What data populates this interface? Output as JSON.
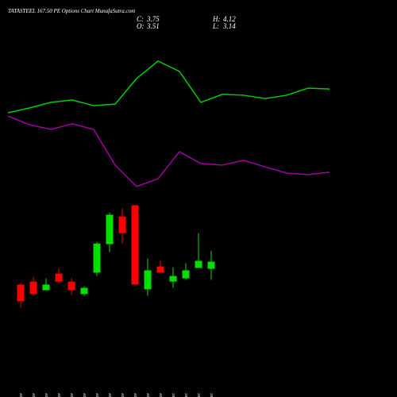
{
  "chart_data": {
    "type": "candlestick",
    "title": "TATASTEEL 167.50 PE Options Chart MunafaSutra.com",
    "info": [
      {
        "label": "C:",
        "value": 3.75
      },
      {
        "label": "O:",
        "value": 3.51
      },
      {
        "label": "H:",
        "value": 4.12
      },
      {
        "label": "L:",
        "value": 3.14
      }
    ],
    "categories": [
      "12 Nov",
      "14 Nov",
      "17 Nov",
      "18 Nov",
      "19 Nov",
      "20 Nov",
      "21 Nov",
      "24 Nov",
      "25 Nov",
      "26 Nov",
      "27 Nov",
      "28 Nov",
      "01 Dec",
      "02 Dec",
      "03 Dec",
      "04 Dec"
    ],
    "open": [
      2.98,
      3.08,
      2.79,
      3.35,
      3.08,
      2.66,
      3.38,
      4.34,
      5.27,
      5.65,
      2.82,
      3.59,
      3.08,
      3.19,
      3.54,
      3.51
    ],
    "close": [
      2.42,
      2.66,
      2.98,
      3.08,
      2.79,
      2.87,
      4.36,
      5.33,
      4.71,
      2.98,
      3.46,
      3.38,
      3.27,
      3.46,
      3.78,
      3.75
    ],
    "high": [
      3.03,
      3.24,
      3.19,
      3.54,
      3.19,
      2.92,
      4.42,
      5.41,
      5.54,
      5.65,
      3.86,
      3.78,
      3.56,
      3.7,
      4.71,
      4.12
    ],
    "low": [
      2.2,
      2.63,
      2.79,
      3.06,
      2.63,
      2.6,
      3.27,
      4.07,
      4.36,
      2.98,
      2.6,
      3.38,
      2.87,
      3.14,
      3.54,
      3.14
    ],
    "up_color": "#00e000",
    "down_color": "#ff0000",
    "series": [
      {
        "color": "#00cc00",
        "values": [
          8.76,
          8.92,
          9.11,
          9.19,
          9.0,
          9.05,
          9.91,
          10.5,
          10.15,
          9.11,
          9.38,
          9.35,
          9.24,
          9.35,
          9.59,
          9.56
        ]
      },
      {
        "color": "#a000a0",
        "values": [
          8.65,
          8.36,
          8.2,
          8.39,
          8.2,
          7.0,
          6.28,
          6.54,
          7.45,
          7.05,
          7.0,
          7.16,
          6.94,
          6.73,
          6.68,
          6.76
        ]
      }
    ],
    "ylim": [
      0,
      12.5
    ]
  }
}
